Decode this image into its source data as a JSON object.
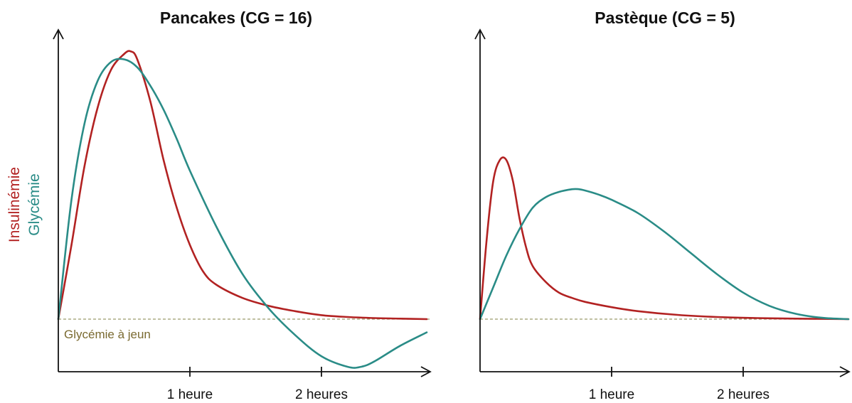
{
  "y_axis_labels": {
    "insulin": "Insulinémie",
    "glucose": "Glycémie"
  },
  "baseline_label": "Glycémie à jeun",
  "colors": {
    "insulin": "#b22222",
    "glucose": "#2a8c87",
    "baseline": "#9a9a6a",
    "baseline_label": "#7a6a30",
    "axis": "#111111"
  },
  "chart_data": [
    {
      "type": "line",
      "title": "Pancakes (CG = 16)",
      "xlabel": "",
      "ylabel": "",
      "xlim": [
        0,
        2.8
      ],
      "ylim": [
        -0.2,
        1.1
      ],
      "xticks": [
        1,
        2
      ],
      "xtick_labels": [
        "1 heure",
        "2 heures"
      ],
      "baseline": 0,
      "series": [
        {
          "key": "insulin",
          "x": [
            0,
            0.1,
            0.2,
            0.3,
            0.4,
            0.5,
            0.55,
            0.6,
            0.7,
            0.8,
            0.9,
            1.0,
            1.1,
            1.2,
            1.4,
            1.6,
            1.8,
            2.0,
            2.2,
            2.4,
            2.6,
            2.8
          ],
          "y": [
            0,
            0.28,
            0.58,
            0.8,
            0.94,
            1.0,
            1.01,
            0.98,
            0.82,
            0.6,
            0.42,
            0.28,
            0.18,
            0.13,
            0.08,
            0.05,
            0.03,
            0.015,
            0.008,
            0.004,
            0.002,
            0
          ]
        },
        {
          "key": "glucose",
          "x": [
            0,
            0.1,
            0.2,
            0.3,
            0.4,
            0.5,
            0.6,
            0.7,
            0.8,
            0.9,
            1.0,
            1.2,
            1.4,
            1.6,
            1.8,
            2.0,
            2.2,
            2.3,
            2.4,
            2.6,
            2.8
          ],
          "y": [
            0,
            0.45,
            0.74,
            0.9,
            0.97,
            0.98,
            0.95,
            0.88,
            0.79,
            0.68,
            0.56,
            0.35,
            0.17,
            0.04,
            -0.06,
            -0.14,
            -0.18,
            -0.18,
            -0.16,
            -0.1,
            -0.05
          ]
        }
      ]
    },
    {
      "type": "line",
      "title": "Pastèque (CG = 5)",
      "xlabel": "",
      "ylabel": "",
      "xlim": [
        0,
        2.8
      ],
      "ylim": [
        -0.2,
        1.1
      ],
      "xticks": [
        1,
        2
      ],
      "xtick_labels": [
        "1 heure",
        "2 heures"
      ],
      "baseline": 0,
      "series": [
        {
          "key": "insulin",
          "x": [
            0,
            0.05,
            0.1,
            0.15,
            0.2,
            0.25,
            0.3,
            0.35,
            0.4,
            0.5,
            0.6,
            0.7,
            0.8,
            1.0,
            1.2,
            1.5,
            1.8,
            2.1,
            2.4,
            2.8
          ],
          "y": [
            0,
            0.3,
            0.52,
            0.6,
            0.6,
            0.52,
            0.38,
            0.27,
            0.2,
            0.14,
            0.1,
            0.08,
            0.065,
            0.045,
            0.03,
            0.016,
            0.008,
            0.004,
            0.002,
            0
          ]
        },
        {
          "key": "glucose",
          "x": [
            0,
            0.1,
            0.2,
            0.3,
            0.4,
            0.5,
            0.6,
            0.7,
            0.75,
            0.8,
            0.9,
            1.0,
            1.2,
            1.4,
            1.6,
            1.8,
            2.0,
            2.2,
            2.4,
            2.6,
            2.8
          ],
          "y": [
            0,
            0.12,
            0.24,
            0.34,
            0.42,
            0.46,
            0.48,
            0.49,
            0.49,
            0.485,
            0.47,
            0.45,
            0.4,
            0.33,
            0.25,
            0.17,
            0.1,
            0.05,
            0.02,
            0.005,
            0
          ]
        }
      ]
    }
  ]
}
